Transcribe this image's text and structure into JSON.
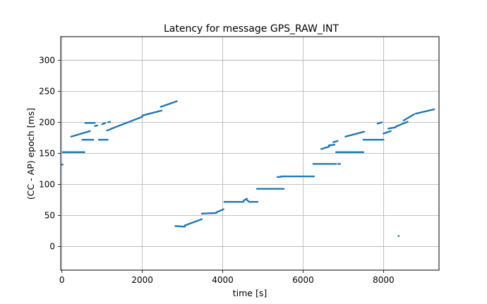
{
  "chart_data": {
    "type": "scatter",
    "title": "Latency for message GPS_RAW_INT",
    "xlabel": "time [s]",
    "ylabel": "(CC - AP) epoch [ms]",
    "xlim": [
      -30,
      9380
    ],
    "ylim": [
      -38,
      338
    ],
    "xticks": [
      0,
      2000,
      4000,
      6000,
      8000
    ],
    "yticks": [
      0,
      50,
      100,
      150,
      200,
      250,
      300
    ],
    "grid": true,
    "marker_color": "#1f77b4",
    "series": [
      {
        "segments": [
          {
            "x": [
              0,
              20
            ],
            "y": [
              132,
              132
            ]
          },
          {
            "x": [
              20,
              560
            ],
            "y": [
              152,
              152
            ]
          },
          {
            "x": [
              230,
              700
            ],
            "y": [
              177,
              186
            ]
          },
          {
            "x": [
              510,
              780
            ],
            "y": [
              172,
              172
            ]
          },
          {
            "x": [
              580,
              820
            ],
            "y": [
              199,
              199
            ]
          },
          {
            "x": [
              820,
              880
            ],
            "y": [
              194,
              195
            ]
          },
          {
            "x": [
              920,
              1140
            ],
            "y": [
              172,
              172
            ]
          },
          {
            "x": [
              1000,
              1080
            ],
            "y": [
              197,
              199
            ]
          },
          {
            "x": [
              1150,
              1200
            ],
            "y": [
              200,
              201
            ]
          },
          {
            "x": [
              1120,
              1180
            ],
            "y": [
              187,
              188
            ]
          },
          {
            "x": [
              1200,
              2000
            ],
            "y": [
              189,
              209
            ]
          },
          {
            "x": [
              2000,
              2480
            ],
            "y": [
              211,
              219
            ]
          },
          {
            "x": [
              2460,
              2860
            ],
            "y": [
              225,
              234
            ]
          },
          {
            "x": [
              2820,
              3060
            ],
            "y": [
              33,
              32
            ]
          },
          {
            "x": [
              3060,
              3480
            ],
            "y": [
              34,
              44
            ]
          },
          {
            "x": [
              3480,
              3840
            ],
            "y": [
              53,
              54
            ]
          },
          {
            "x": [
              3840,
              4020
            ],
            "y": [
              55,
              60
            ]
          },
          {
            "x": [
              4040,
              4520
            ],
            "y": [
              72,
              72
            ]
          },
          {
            "x": [
              4520,
              4600
            ],
            "y": [
              74,
              77
            ]
          },
          {
            "x": [
              4600,
              4660
            ],
            "y": [
              75,
              72
            ]
          },
          {
            "x": [
              4660,
              4870
            ],
            "y": [
              72,
              72
            ]
          },
          {
            "x": [
              4850,
              5520
            ],
            "y": [
              93,
              93
            ]
          },
          {
            "x": [
              5360,
              5440
            ],
            "y": [
              112,
              112
            ]
          },
          {
            "x": [
              5450,
              6270
            ],
            "y": [
              113,
              113
            ]
          },
          {
            "x": [
              6250,
              6820
            ],
            "y": [
              133,
              133
            ]
          },
          {
            "x": [
              6870,
              6920
            ],
            "y": [
              133,
              133
            ]
          },
          {
            "x": [
              6820,
              7500
            ],
            "y": [
              152,
              152
            ]
          },
          {
            "x": [
              6450,
              6650
            ],
            "y": [
              157,
              161
            ]
          },
          {
            "x": [
              6640,
              6780
            ],
            "y": [
              163,
              164
            ]
          },
          {
            "x": [
              6750,
              6860
            ],
            "y": [
              168,
              170
            ]
          },
          {
            "x": [
              7050,
              7520
            ],
            "y": [
              177,
              185
            ]
          },
          {
            "x": [
              7500,
              8000
            ],
            "y": [
              172,
              172
            ]
          },
          {
            "x": [
              7850,
              7960
            ],
            "y": [
              198,
              200
            ]
          },
          {
            "x": [
              8000,
              8180
            ],
            "y": [
              182,
              186
            ]
          },
          {
            "x": [
              8120,
              8300
            ],
            "y": [
              190,
              192
            ]
          },
          {
            "x": [
              8300,
              8600
            ],
            "y": [
              193,
              201
            ]
          },
          {
            "x": [
              8500,
              8760
            ],
            "y": [
              203,
              213
            ]
          },
          {
            "x": [
              8800,
              9260
            ],
            "y": [
              214,
              221
            ]
          },
          {
            "x": [
              8370,
              8380
            ],
            "y": [
              17,
              17
            ]
          }
        ]
      }
    ]
  }
}
